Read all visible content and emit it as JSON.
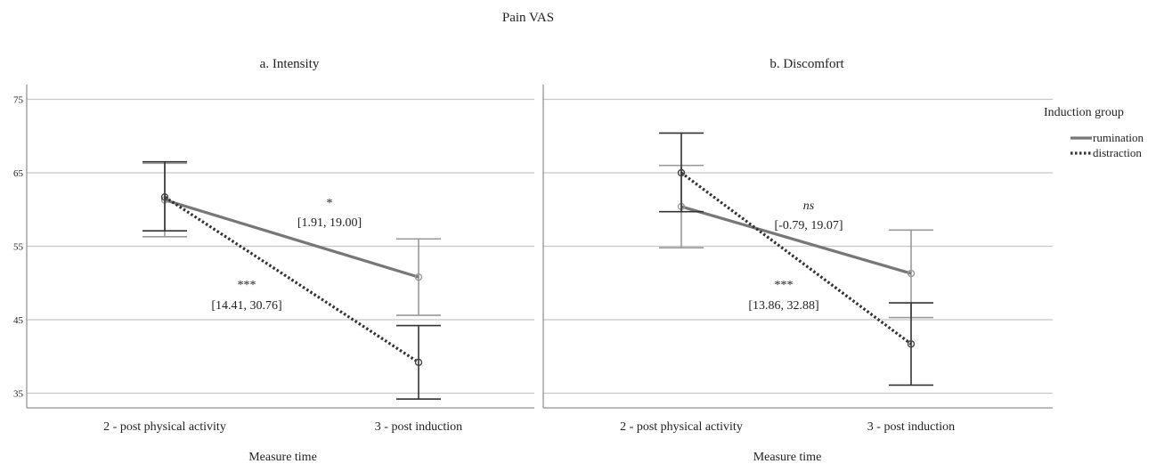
{
  "figure": {
    "title": "Pain VAS",
    "legend": {
      "title": "Induction group",
      "placement": "top-right",
      "items": [
        {
          "name": "rumination",
          "style": "solid",
          "color": "#777777"
        },
        {
          "name": "distraction",
          "style": "dotted",
          "color": "#333333"
        }
      ]
    }
  },
  "chart_data": [
    {
      "type": "line",
      "title": "a. Intensity",
      "xlabel": "Measure time",
      "ylabel": "",
      "categories": [
        "2 - post physical activity",
        "3 - post induction"
      ],
      "ylim": [
        33,
        77
      ],
      "yticks": [
        35,
        45,
        55,
        65,
        75
      ],
      "grid": true,
      "series": [
        {
          "name": "rumination",
          "values": [
            61.3,
            50.8
          ],
          "err_low": [
            56.3,
            45.6
          ],
          "err_high": [
            66.3,
            56.0
          ]
        },
        {
          "name": "distraction",
          "values": [
            61.7,
            39.2
          ],
          "err_low": [
            57.1,
            34.2
          ],
          "err_high": [
            66.5,
            44.2
          ]
        }
      ],
      "annotations": [
        {
          "symbol": "*",
          "ci": "[1.91, 19.00]"
        },
        {
          "symbol": "***",
          "ci": "[14.41, 30.76]"
        }
      ]
    },
    {
      "type": "line",
      "title": "b. Discomfort",
      "xlabel": "Measure time",
      "ylabel": "",
      "categories": [
        "2 - post physical activity",
        "3 - post induction"
      ],
      "ylim": [
        33,
        77
      ],
      "yticks": [
        35,
        45,
        55,
        65,
        75
      ],
      "grid": true,
      "series": [
        {
          "name": "rumination",
          "values": [
            60.4,
            51.3
          ],
          "err_low": [
            54.8,
            45.3
          ],
          "err_high": [
            66.0,
            57.2
          ]
        },
        {
          "name": "distraction",
          "values": [
            65.0,
            41.7
          ],
          "err_low": [
            59.7,
            36.1
          ],
          "err_high": [
            70.4,
            47.3
          ]
        }
      ],
      "annotations": [
        {
          "symbol": "ns",
          "ci": "[-0.79, 19.07]"
        },
        {
          "symbol": "***",
          "ci": "[13.86, 32.88]"
        }
      ]
    }
  ]
}
